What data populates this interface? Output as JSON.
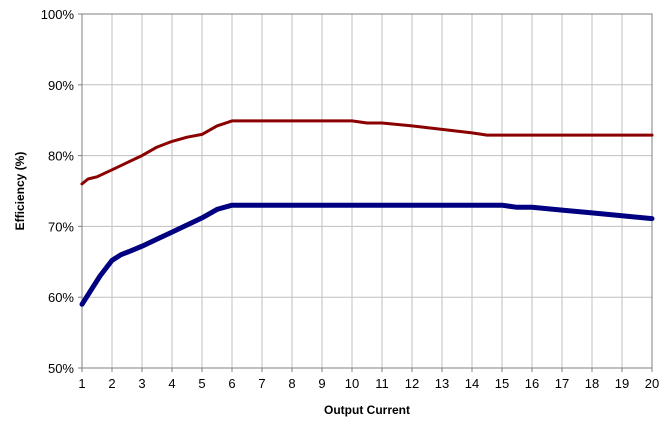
{
  "chart_data": {
    "type": "line",
    "title": "",
    "xlabel": "Output Current",
    "ylabel": "Efficiency (%)",
    "xlim": [
      1,
      20
    ],
    "ylim": [
      50,
      100
    ],
    "grid": true,
    "legend": "none",
    "x_ticks": [
      "1",
      "2",
      "3",
      "4",
      "5",
      "6",
      "7",
      "8",
      "9",
      "10",
      "11",
      "12",
      "13",
      "14",
      "15",
      "16",
      "17",
      "18",
      "19",
      "20"
    ],
    "y_ticks": [
      "50%",
      "60%",
      "70%",
      "80%",
      "90%",
      "100%"
    ],
    "y_tick_values": [
      50,
      60,
      70,
      80,
      90,
      100
    ],
    "series": [
      {
        "color": "#8b0000",
        "points": [
          [
            1,
            76
          ],
          [
            1.2,
            76.7
          ],
          [
            1.5,
            77
          ],
          [
            2,
            78
          ],
          [
            2.5,
            79
          ],
          [
            3,
            80
          ],
          [
            3.5,
            81.2
          ],
          [
            4,
            82
          ],
          [
            4.5,
            82.6
          ],
          [
            5,
            83
          ],
          [
            5.5,
            84.2
          ],
          [
            6,
            84.9
          ],
          [
            7,
            84.9
          ],
          [
            8,
            84.9
          ],
          [
            9,
            84.9
          ],
          [
            10,
            84.9
          ],
          [
            10.5,
            84.6
          ],
          [
            11,
            84.6
          ],
          [
            12,
            84.2
          ],
          [
            13,
            83.7
          ],
          [
            14,
            83.2
          ],
          [
            14.5,
            82.9
          ],
          [
            15,
            82.9
          ],
          [
            16,
            82.9
          ],
          [
            17,
            82.9
          ],
          [
            18,
            82.9
          ],
          [
            19,
            82.9
          ],
          [
            20,
            82.9
          ]
        ]
      },
      {
        "color": "#000080",
        "points": [
          [
            1,
            59
          ],
          [
            1.3,
            61
          ],
          [
            1.6,
            63
          ],
          [
            2,
            65.2
          ],
          [
            2.3,
            66
          ],
          [
            2.6,
            66.5
          ],
          [
            3,
            67.2
          ],
          [
            3.5,
            68.2
          ],
          [
            4,
            69.2
          ],
          [
            4.5,
            70.2
          ],
          [
            5,
            71.2
          ],
          [
            5.5,
            72.4
          ],
          [
            6,
            73
          ],
          [
            7,
            73
          ],
          [
            8,
            73
          ],
          [
            9,
            73
          ],
          [
            10,
            73
          ],
          [
            11,
            73
          ],
          [
            12,
            73
          ],
          [
            13,
            73
          ],
          [
            14,
            73
          ],
          [
            15,
            73
          ],
          [
            15.5,
            72.7
          ],
          [
            16,
            72.7
          ],
          [
            17,
            72.3
          ],
          [
            18,
            71.9
          ],
          [
            19,
            71.5
          ],
          [
            20,
            71.1
          ]
        ]
      }
    ]
  }
}
